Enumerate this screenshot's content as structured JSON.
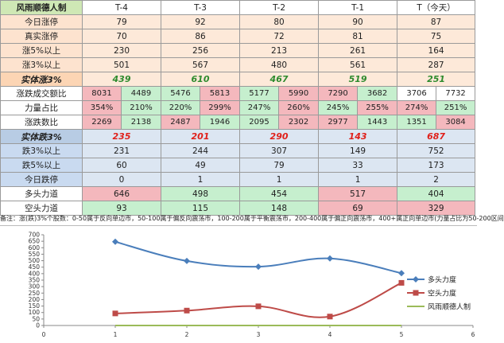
{
  "table": {
    "title": "风雨顺德人制",
    "columns": [
      "T-4",
      "T-3",
      "T-2",
      "T-1",
      "T（今天）"
    ],
    "rows_up": [
      {
        "label": "今日涨停",
        "values": [
          "79",
          "92",
          "80",
          "90",
          "87"
        ]
      },
      {
        "label": "真实涨停",
        "values": [
          "70",
          "86",
          "72",
          "81",
          "75"
        ]
      },
      {
        "label": "涨5%以上",
        "values": [
          "230",
          "256",
          "213",
          "261",
          "164"
        ]
      },
      {
        "label": "涨3%以上",
        "values": [
          "501",
          "567",
          "480",
          "561",
          "287"
        ]
      }
    ],
    "real_up": {
      "label": "实体涨3%",
      "values": [
        "439",
        "610",
        "467",
        "519",
        "251"
      ]
    },
    "pair_rows": [
      {
        "label": "涨跌成交额比",
        "values": [
          [
            "8031",
            "4489"
          ],
          [
            "5476",
            "5813"
          ],
          [
            "5177",
            "5990"
          ],
          [
            "7290",
            "3682"
          ],
          [
            "3706",
            "7732"
          ]
        ]
      },
      {
        "label": "力量占比",
        "values": [
          [
            "354%",
            "210%"
          ],
          [
            "220%",
            "299%"
          ],
          [
            "247%",
            "260%"
          ],
          [
            "245%",
            "255%"
          ],
          [
            "274%",
            "251%"
          ]
        ]
      },
      {
        "label": "涨跌数比",
        "values": [
          [
            "2269",
            "2138"
          ],
          [
            "2487",
            "1946"
          ],
          [
            "2095",
            "2302"
          ],
          [
            "2977",
            "1443"
          ],
          [
            "1351",
            "3084"
          ]
        ]
      }
    ],
    "real_down": {
      "label": "实体跌3%",
      "values": [
        "235",
        "201",
        "290",
        "143",
        "687"
      ]
    },
    "rows_down": [
      {
        "label": "跌3%以上",
        "values": [
          "231",
          "244",
          "307",
          "149",
          "752"
        ]
      },
      {
        "label": "跌5%以上",
        "values": [
          "60",
          "49",
          "79",
          "33",
          "173"
        ]
      },
      {
        "label": "今日跌停",
        "values": [
          "0",
          "1",
          "1",
          "1",
          "2"
        ]
      }
    ],
    "bull": {
      "label": "多头力道",
      "values": [
        "646",
        "498",
        "454",
        "517",
        "404"
      ]
    },
    "bear": {
      "label": "空头力道",
      "values": [
        "93",
        "115",
        "148",
        "69",
        "329"
      ]
    }
  },
  "note": "备注：涨(跌)3%个股数：0-50属于反向单边市，50-100属于偏反向震荡市，100-200属于平衡震荡市，200-400属于偏正向震荡市，400+属正向单边市(力量占比为50-200区间",
  "colors": {
    "bull": "#4a7ebb",
    "bear": "#be4b48",
    "third": "#9bbb59"
  },
  "chart_data": {
    "type": "line",
    "x": [
      1,
      2,
      3,
      4,
      5
    ],
    "series": [
      {
        "name": "多头力度",
        "values": [
          646,
          498,
          454,
          517,
          404
        ]
      },
      {
        "name": "空头力度",
        "values": [
          93,
          115,
          148,
          69,
          329
        ]
      },
      {
        "name": "风雨顺德人制",
        "values": [
          0,
          0,
          0,
          0,
          0
        ]
      }
    ],
    "xlim": [
      0,
      6
    ],
    "ylim": [
      0,
      700
    ],
    "xticks": [
      "0",
      "1",
      "2",
      "3",
      "4",
      "5",
      "6"
    ],
    "yticks": [
      "0",
      "50",
      "100",
      "150",
      "200",
      "250",
      "300",
      "350",
      "400",
      "450",
      "500",
      "550",
      "600",
      "650",
      "700"
    ],
    "grid": false,
    "legend": "right"
  }
}
